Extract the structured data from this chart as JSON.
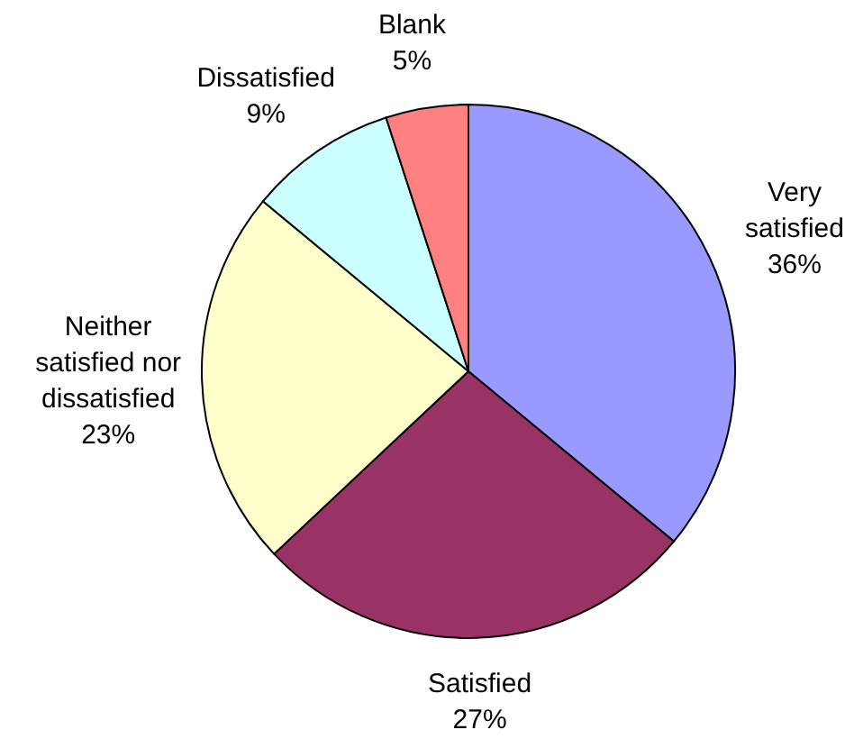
{
  "chart_data": {
    "type": "pie",
    "categories": [
      "Very satisfied",
      "Satisfied",
      "Neither satisfied nor dissatisfied",
      "Dissatisfied",
      "Blank"
    ],
    "values": [
      36,
      27,
      23,
      9,
      5
    ],
    "colors": [
      "#9999ff",
      "#993366",
      "#ffffcc",
      "#ccffff",
      "#ff8080"
    ],
    "value_labels": [
      "36%",
      "27%",
      "23%",
      "9%",
      "5%"
    ]
  }
}
